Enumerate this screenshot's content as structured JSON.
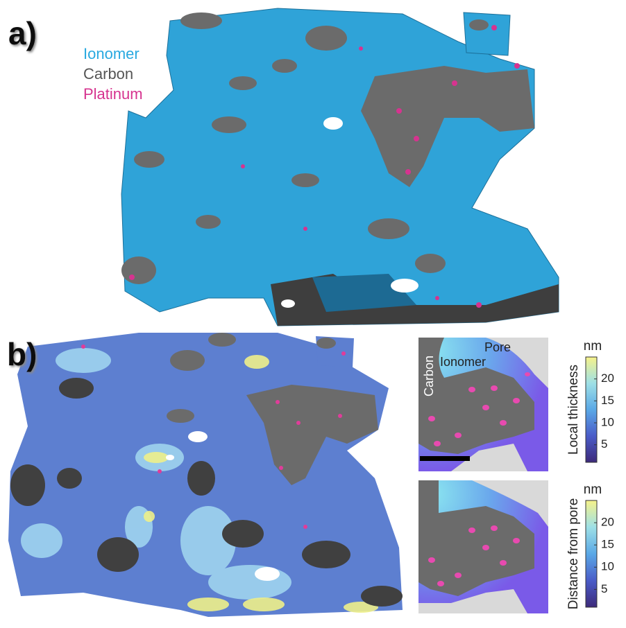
{
  "panel_a": {
    "label": "a)",
    "legend": {
      "ionomer": "Ionomer",
      "carbon": "Carbon",
      "platinum": "Platinum"
    }
  },
  "panel_b": {
    "label": "b)",
    "inset_top": {
      "labels": {
        "pore": "Pore",
        "ionomer": "Ionomer",
        "carbon": "Carbon"
      },
      "colorbar": {
        "unit": "nm",
        "title": "Local thickness",
        "lim": [
          1,
          25
        ],
        "ticks": [
          5,
          10,
          15,
          20
        ]
      }
    },
    "inset_bottom": {
      "colorbar": {
        "unit": "nm",
        "title": "Distance from pore",
        "lim": [
          1,
          25
        ],
        "ticks": [
          5,
          10,
          15,
          20
        ]
      }
    }
  }
}
